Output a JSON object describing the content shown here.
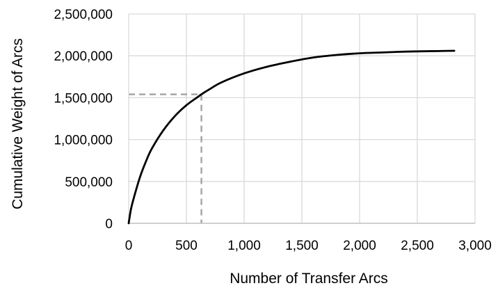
{
  "chart_data": {
    "type": "line",
    "title": "",
    "xlabel": "Number of Transfer Arcs",
    "ylabel": "Cumulative Weight of Arcs",
    "xlim": [
      0,
      3000
    ],
    "ylim": [
      0,
      2500000
    ],
    "x_ticks": [
      0,
      500,
      1000,
      1500,
      2000,
      2500,
      3000
    ],
    "x_tick_labels": [
      "0",
      "500",
      "1,000",
      "1,500",
      "2,000",
      "2,500",
      "3,000"
    ],
    "y_ticks": [
      0,
      500000,
      1000000,
      1500000,
      2000000,
      2500000
    ],
    "y_tick_labels": [
      "0",
      "500,000",
      "1,000,000",
      "1,500,000",
      "2,000,000",
      "2,500,000"
    ],
    "grid": true,
    "legend": "none",
    "series": [
      {
        "color": "#000000",
        "x": [
          0,
          20,
          50,
          100,
          150,
          200,
          300,
          400,
          500,
          600,
          630,
          700,
          800,
          1000,
          1200,
          1400,
          1600,
          1800,
          2000,
          2200,
          2400,
          2600,
          2820
        ],
        "y": [
          0,
          170000,
          330000,
          560000,
          740000,
          890000,
          1110000,
          1280000,
          1410000,
          1510000,
          1540000,
          1600000,
          1680000,
          1790000,
          1870000,
          1930000,
          1980000,
          2010000,
          2030000,
          2040000,
          2050000,
          2055000,
          2060000
        ]
      }
    ],
    "reference_lines": {
      "color": "#a6a6a6",
      "style": "dashed",
      "x": 630,
      "y": 1540000
    }
  }
}
